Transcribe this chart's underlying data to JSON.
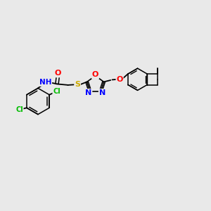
{
  "bg_color": "#e9e9e9",
  "bond_color": "#000000",
  "atom_colors": {
    "Cl": "#00bb00",
    "O": "#ff0000",
    "N": "#0000ff",
    "S": "#ccaa00",
    "H": "#000000"
  },
  "figsize": [
    3.0,
    3.0
  ],
  "dpi": 100
}
